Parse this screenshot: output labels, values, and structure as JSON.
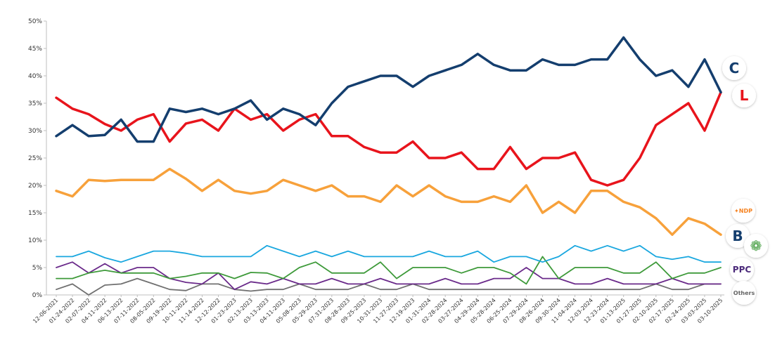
{
  "chart_data": {
    "type": "line",
    "ylim": [
      0,
      50
    ],
    "yticks": [
      0,
      5,
      10,
      15,
      20,
      25,
      30,
      35,
      40,
      45,
      50
    ],
    "ytick_suffix": "%",
    "grid": false,
    "x_labels": [
      "12-06-2021",
      "01-24-2022",
      "02-07-2022",
      "04-11-2022",
      "06-13-2022",
      "07-11-2022",
      "08-05-2022",
      "09-19-2022",
      "10-11-2022",
      "11-14-2022",
      "12-12-2022",
      "01-23-2023",
      "02-13-2023",
      "03-13-2023",
      "04-11-2023",
      "05-08-2023",
      "05-29-2023",
      "07-31-2023",
      "08-28-2023",
      "09-25-2023",
      "10-31-2023",
      "11-27-2023",
      "12-19-2023",
      "01-31-2024",
      "02-28-2024",
      "03-27-2024",
      "04-29-2024",
      "05-28-2024",
      "06-25-2024",
      "07-29-2024",
      "08-26-2024",
      "09-30-2024",
      "11-04-2024",
      "12-03-2024",
      "12-23-2024",
      "01-13-2025",
      "01-27-2025",
      "02-10-2025",
      "02-17-2025",
      "02-24-2025",
      "03-03-2025",
      "03-10-2025"
    ],
    "series": [
      {
        "key": "liberal",
        "color": "#e8141c",
        "values": [
          36,
          34,
          33,
          31.2,
          30,
          32,
          33,
          28,
          31.3,
          32,
          30,
          34,
          32,
          33,
          30,
          32,
          33,
          29,
          29,
          27,
          26,
          26,
          28,
          25,
          25,
          26,
          23,
          23,
          27,
          23,
          25,
          25,
          26,
          21,
          20,
          21,
          25,
          31,
          33,
          35,
          30,
          37
        ]
      },
      {
        "key": "conservative",
        "color": "#143e6e",
        "values": [
          29,
          31,
          29,
          29.2,
          32,
          28,
          28,
          34,
          33.4,
          34,
          33,
          34,
          35.5,
          32,
          34,
          33,
          31,
          35,
          38,
          39,
          40,
          40,
          38,
          40,
          41,
          42,
          44,
          42,
          41,
          41,
          43,
          42,
          42,
          43,
          43,
          47,
          43,
          40,
          41,
          38,
          43,
          37
        ]
      },
      {
        "key": "ndp",
        "color": "#f7a13b",
        "values": [
          19,
          18,
          21,
          20.8,
          21,
          21,
          21,
          23,
          21.2,
          19,
          21,
          19,
          18.5,
          19,
          21,
          20,
          19,
          20,
          18,
          18,
          17,
          20,
          18,
          20,
          18,
          17,
          17,
          18,
          17,
          20,
          15,
          17,
          15,
          19,
          19,
          17,
          16,
          14,
          11,
          14,
          13,
          11
        ]
      },
      {
        "key": "bloc",
        "color": "#19a7df",
        "values": [
          7,
          7,
          8,
          6.8,
          6,
          7,
          8,
          8,
          7.6,
          7,
          7,
          7,
          7,
          9,
          8,
          7,
          8,
          7,
          8,
          7,
          7,
          7,
          7,
          8,
          7,
          7,
          8,
          6,
          7,
          7,
          6,
          7,
          9,
          8,
          9,
          8,
          9,
          7,
          6.5,
          7,
          6,
          6
        ]
      },
      {
        "key": "green",
        "color": "#3e9a3a",
        "values": [
          3,
          3,
          4,
          4.5,
          4,
          4,
          4,
          3,
          3.4,
          4,
          4,
          3,
          4.1,
          4,
          3,
          5,
          6,
          4,
          4,
          4,
          6,
          3,
          5,
          5,
          5,
          4,
          5,
          5,
          4,
          2,
          7,
          3,
          5,
          5,
          5,
          4,
          4,
          6,
          3,
          4,
          4,
          5
        ]
      },
      {
        "key": "ppc",
        "color": "#6a2a8a",
        "values": [
          5,
          6,
          4,
          5.7,
          4,
          5,
          5,
          3,
          2.3,
          2,
          4,
          1,
          2.4,
          2,
          3,
          2,
          2,
          3,
          2,
          2,
          3,
          2,
          2,
          2,
          3,
          2,
          2,
          3,
          3,
          5,
          3,
          3,
          2,
          2,
          3,
          2,
          2,
          2,
          3,
          2,
          2,
          2
        ]
      },
      {
        "key": "others",
        "color": "#707070",
        "values": [
          1,
          2,
          0,
          1.8,
          2,
          3,
          2,
          1,
          0.8,
          2,
          2,
          1,
          0.7,
          1,
          1,
          2,
          1,
          1,
          1,
          2,
          1,
          1,
          2,
          1,
          1,
          1,
          1,
          1,
          1,
          1,
          1,
          1,
          1,
          1,
          1,
          1,
          1,
          2,
          1,
          1,
          2,
          2
        ]
      }
    ],
    "logos": {
      "conservative": {
        "text": "C",
        "color": "#143e6e"
      },
      "liberal": {
        "text": "L",
        "color": "#e8141c"
      },
      "ndp": {
        "text": "✦NDP",
        "color": "#f58220"
      },
      "bloc": {
        "text": "B",
        "color": "#143e6e"
      },
      "green": {
        "text": "❁",
        "color": "#3e9a3a"
      },
      "ppc": {
        "text": "PPC",
        "color": "#4b2a7a"
      },
      "others": {
        "text": "Others",
        "color": "#666666"
      }
    }
  }
}
